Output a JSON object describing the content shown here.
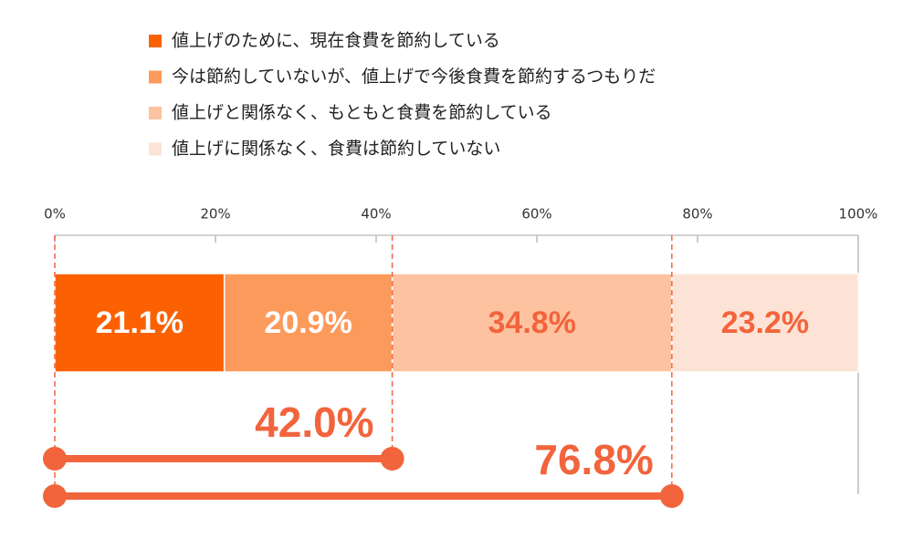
{
  "chart_data": {
    "type": "stacked-bar",
    "orientation": "horizontal",
    "categories": [
      null
    ],
    "series": [
      {
        "name": "値上げのために、現在食費を節約している",
        "color": "#fb6100",
        "values": [
          21.1
        ],
        "value_labels": [
          "21.1%"
        ]
      },
      {
        "name": "今は節約していないが、値上げで今後食費を節約するつもりだ",
        "color": "#fc9a5c",
        "values": [
          20.9
        ],
        "value_labels": [
          "20.9%"
        ]
      },
      {
        "name": "値上げと関係なく、もともと食費を節約している",
        "color": "#fdc3a0",
        "values": [
          34.8
        ],
        "value_labels": [
          "34.8%"
        ]
      },
      {
        "name": "値上げに関係なく、食費は節約していない",
        "color": "#fde3d5",
        "values": [
          23.2
        ],
        "value_labels": [
          "23.2%"
        ]
      }
    ],
    "xlim": [
      0,
      100
    ],
    "xticks": [
      {
        "value": 0,
        "label": "0%"
      },
      {
        "value": 20,
        "label": "20%"
      },
      {
        "value": 40,
        "label": "40%"
      },
      {
        "value": 60,
        "label": "60%"
      },
      {
        "value": 80,
        "label": "80%"
      },
      {
        "value": 100,
        "label": "100%"
      }
    ],
    "annotations": [
      {
        "value": 42.0,
        "label": "42.0%"
      },
      {
        "value": 76.8,
        "label": "76.8%"
      }
    ]
  }
}
